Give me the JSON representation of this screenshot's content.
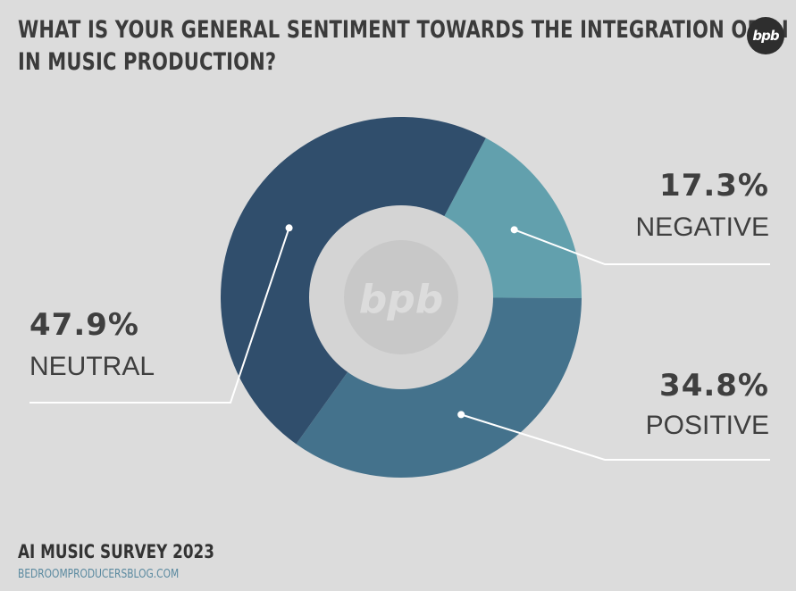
{
  "header": {
    "title_line1": "WHAT IS YOUR GENERAL SENTIMENT TOWARDS THE INTEGRATION OF AI",
    "title_line2": "IN MUSIC PRODUCTION?",
    "logo_text": "bpb"
  },
  "center_logo_text": "bpb",
  "footer": {
    "survey_label": "AI MUSIC SURVEY 2023",
    "url": "BEDROOMPRODUCERSBLOG.COM"
  },
  "chart_data": {
    "type": "pie",
    "title": "WHAT IS YOUR GENERAL SENTIMENT TOWARDS THE INTEGRATION OF AI IN MUSIC PRODUCTION?",
    "donut": true,
    "categories": [
      "NEGATIVE",
      "POSITIVE",
      "NEUTRAL"
    ],
    "values": [
      17.3,
      34.8,
      47.9
    ],
    "labels": [
      "17.3%",
      "34.8%",
      "47.9%"
    ],
    "colors": [
      "#62a0ad",
      "#44728c",
      "#304e6c"
    ]
  },
  "colors": {
    "background": "#dcdcdc",
    "center": "#d4d4d4",
    "leader": "#ffffff"
  }
}
